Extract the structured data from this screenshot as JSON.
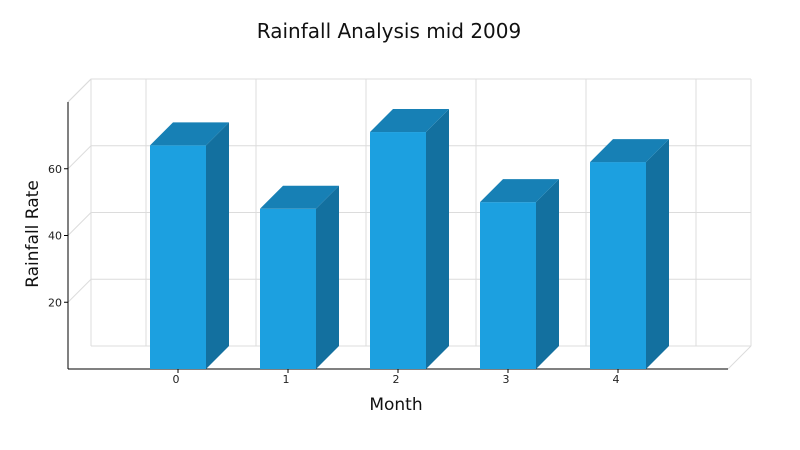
{
  "chart_data": {
    "type": "bar",
    "title": "Rainfall Analysis mid 2009",
    "xlabel": "Month",
    "ylabel": "Rainfall Rate",
    "categories": [
      "0",
      "1",
      "2",
      "3",
      "4"
    ],
    "values": [
      67,
      48,
      71,
      50,
      62
    ],
    "ylim": [
      0,
      80
    ],
    "yticks": [
      "20",
      "40",
      "60"
    ],
    "grid": true,
    "three_d": true,
    "colors": {
      "front": "#1ca0e0",
      "side": "#13709f",
      "top": "#1780b5"
    }
  }
}
